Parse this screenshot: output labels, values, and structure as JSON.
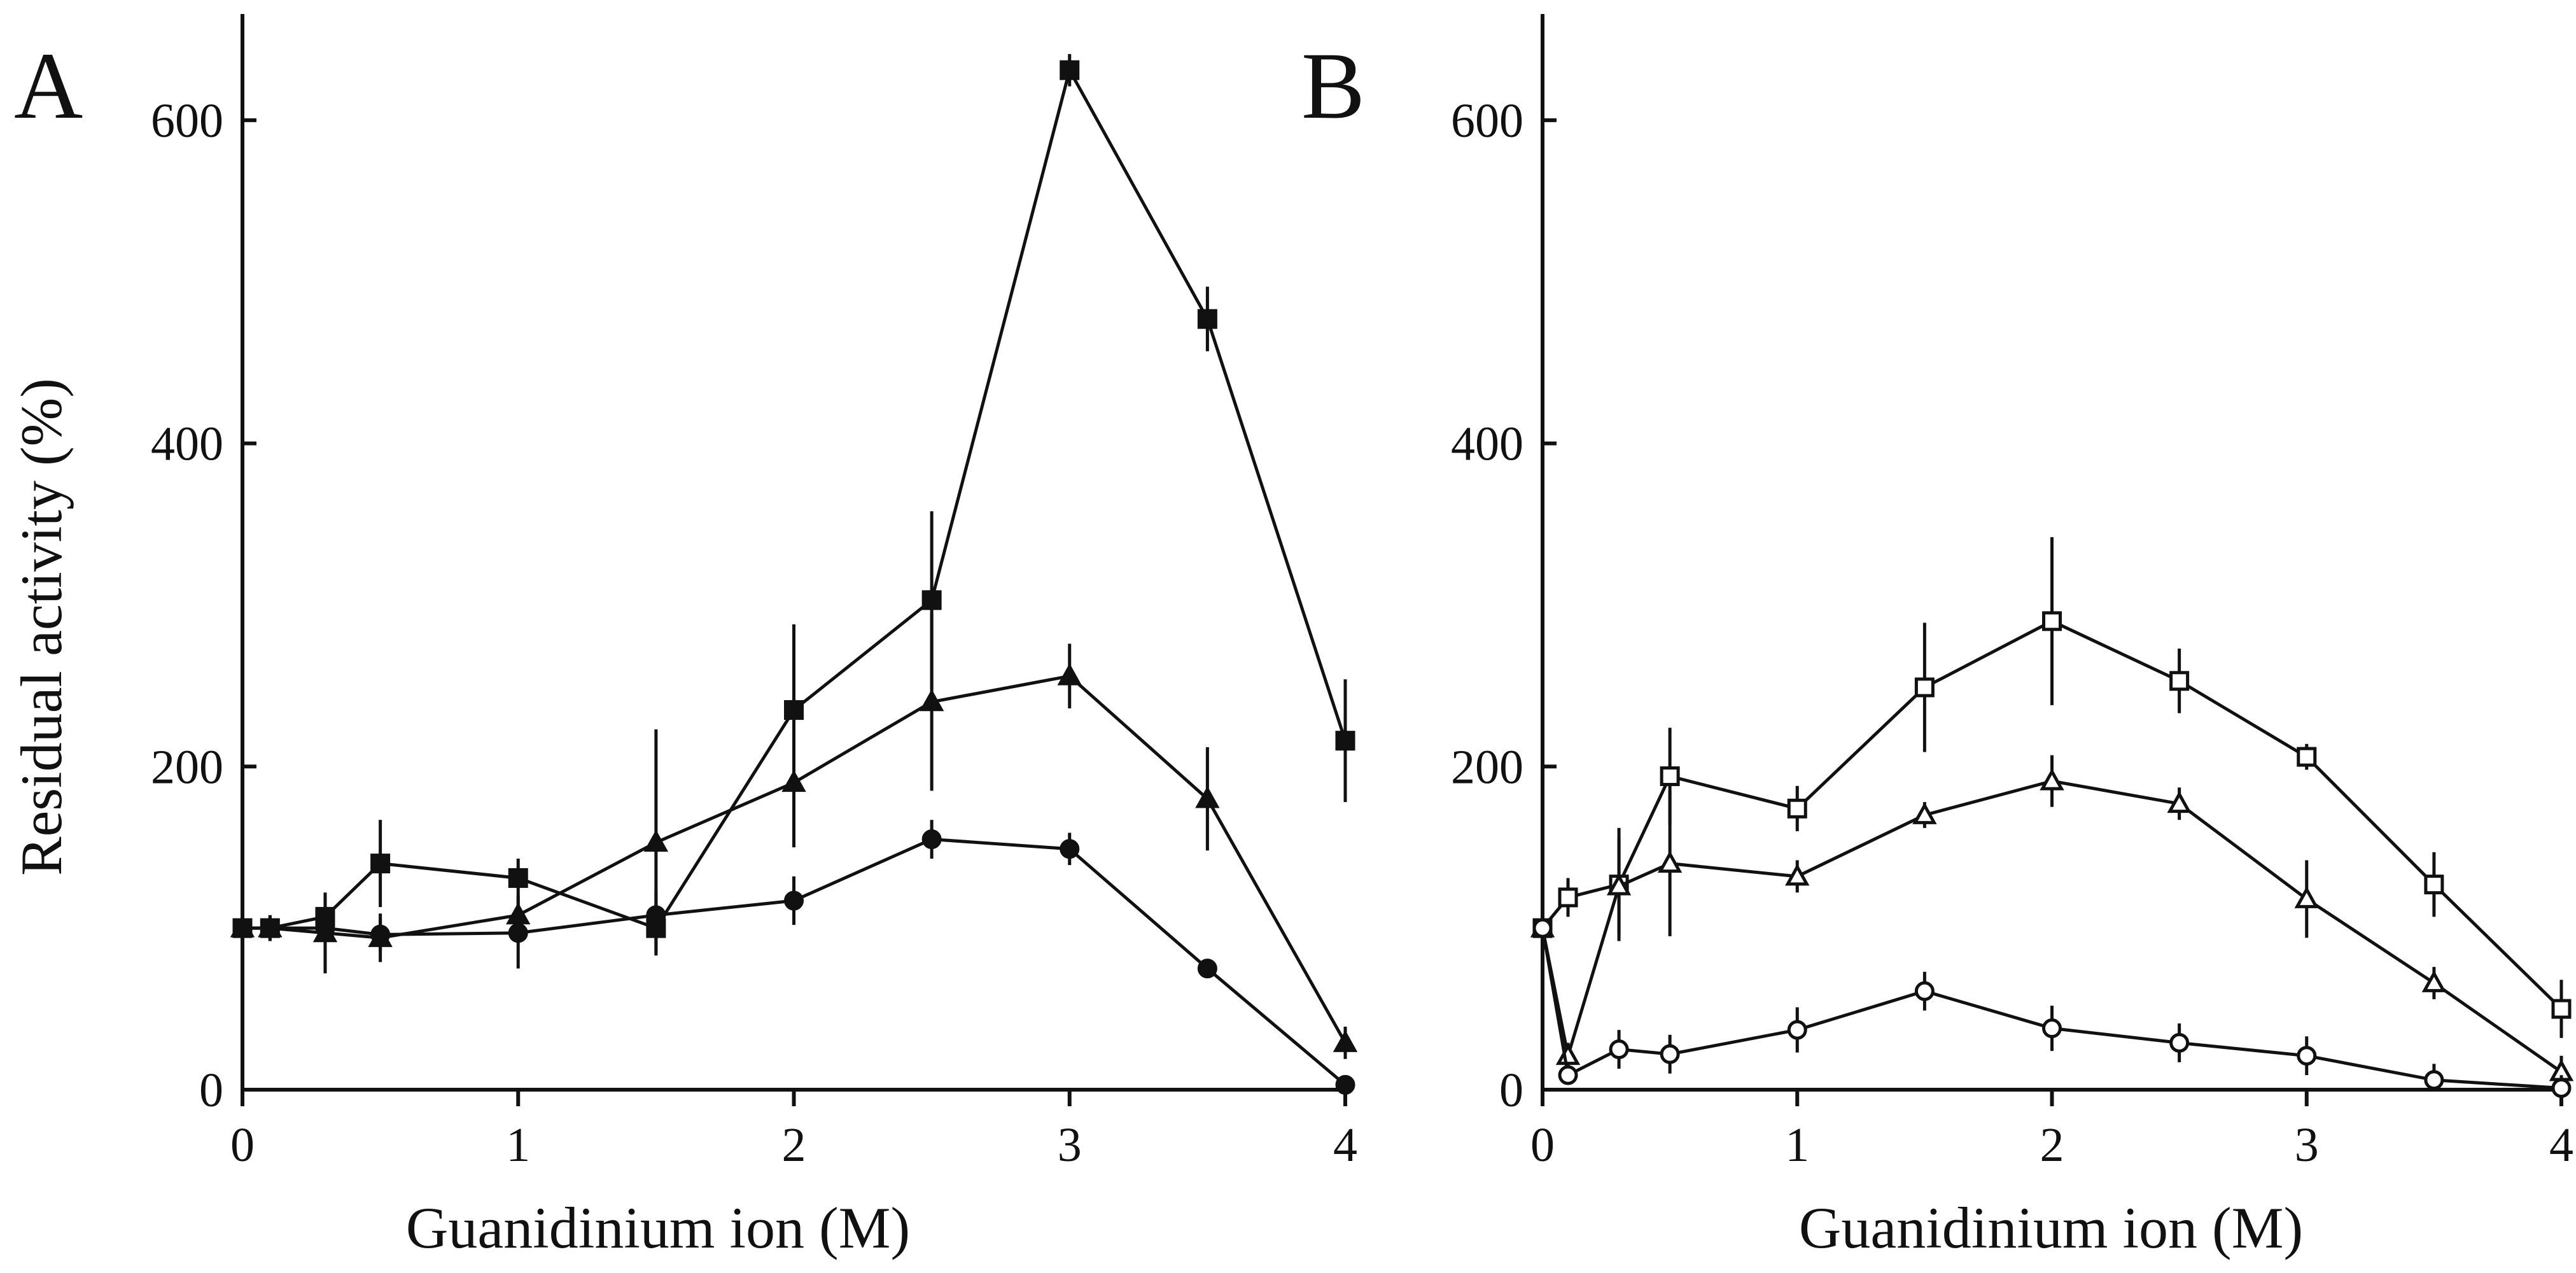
{
  "chart_data": [
    {
      "type": "line",
      "panel": "A",
      "xlabel": "Guanidinium ion (M)",
      "ylabel": "Residual activity (%)",
      "xlim": [
        0,
        4
      ],
      "ylim": [
        0,
        650
      ],
      "xticks": [
        0,
        1,
        2,
        3,
        4
      ],
      "yticks": [
        0,
        200,
        400,
        600
      ],
      "grid": false,
      "series": [
        {
          "name": "filled square",
          "marker": "square",
          "fill": "filled",
          "x": [
            0,
            0.1,
            0.3,
            0.5,
            1,
            1.5,
            2,
            2.5,
            3,
            3.5,
            4
          ],
          "values": [
            100,
            100,
            107,
            140,
            131,
            100,
            235,
            303,
            631,
            477,
            216
          ],
          "errors": [
            5,
            8,
            12,
            27,
            12,
            15,
            53,
            55,
            10,
            20,
            38
          ]
        },
        {
          "name": "filled triangle",
          "marker": "triangle",
          "fill": "filled",
          "x": [
            0,
            0.1,
            0.3,
            0.5,
            1,
            1.5,
            2,
            2.5,
            3,
            3.5,
            4
          ],
          "values": [
            100,
            100,
            97,
            94,
            108,
            153,
            190,
            240,
            256,
            180,
            29
          ],
          "errors": [
            5,
            8,
            25,
            15,
            12,
            70,
            40,
            55,
            20,
            32,
            10
          ]
        },
        {
          "name": "filled circle",
          "marker": "circle",
          "fill": "filled",
          "x": [
            0,
            0.1,
            0.3,
            0.5,
            1,
            1.5,
            2,
            2.5,
            3,
            3.5,
            4
          ],
          "values": [
            100,
            100,
            100,
            96,
            97,
            108,
            117,
            155,
            149,
            75,
            3
          ],
          "errors": [
            5,
            6,
            10,
            10,
            22,
            15,
            15,
            12,
            10,
            5,
            3
          ]
        }
      ]
    },
    {
      "type": "line",
      "panel": "B",
      "xlabel": "Guanidinium ion (M)",
      "ylabel": "",
      "xlim": [
        0,
        4
      ],
      "ylim": [
        0,
        650
      ],
      "xticks": [
        0,
        1,
        2,
        3,
        4
      ],
      "yticks": [
        0,
        200,
        400,
        600
      ],
      "grid": false,
      "series": [
        {
          "name": "open square",
          "marker": "square",
          "fill": "open",
          "x": [
            0,
            0.1,
            0.3,
            0.5,
            1,
            1.5,
            2,
            2.5,
            3,
            3.5,
            4
          ],
          "values": [
            100,
            119,
            127,
            194,
            174,
            249,
            290,
            253,
            206,
            127,
            50
          ],
          "errors": [
            5,
            12,
            35,
            30,
            14,
            40,
            52,
            20,
            8,
            20,
            18
          ]
        },
        {
          "name": "open triangle",
          "marker": "triangle",
          "fill": "open",
          "x": [
            0,
            0.1,
            0.3,
            0.5,
            1,
            1.5,
            2,
            2.5,
            3,
            3.5,
            4
          ],
          "values": [
            100,
            21,
            126,
            140,
            132,
            170,
            191,
            177,
            118,
            66,
            11
          ],
          "errors": [
            5,
            8,
            30,
            45,
            10,
            8,
            16,
            10,
            24,
            10,
            10
          ]
        },
        {
          "name": "open circle",
          "marker": "circle",
          "fill": "open",
          "x": [
            0,
            0.1,
            0.3,
            0.5,
            1,
            1.5,
            2,
            2.5,
            3,
            3.5,
            4
          ],
          "values": [
            100,
            9,
            25,
            22,
            37,
            61,
            38,
            29,
            21,
            6,
            1
          ],
          "errors": [
            5,
            5,
            12,
            12,
            14,
            12,
            14,
            12,
            12,
            10,
            8
          ]
        }
      ]
    }
  ]
}
